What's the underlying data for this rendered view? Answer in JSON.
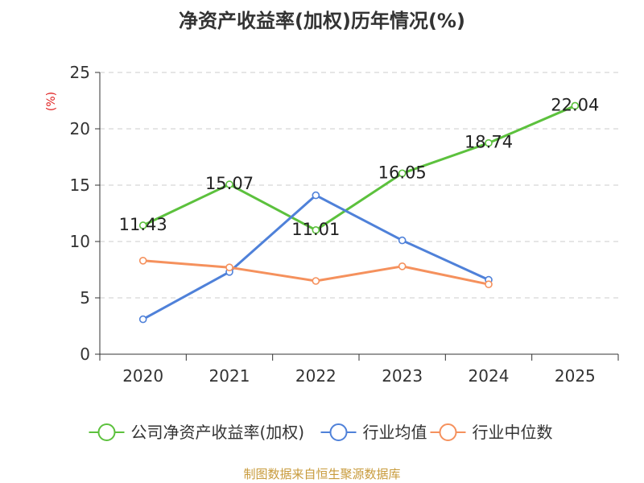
{
  "chart_data": {
    "type": "line",
    "title": "净资产收益率(加权)历年情况(%)",
    "ylabel": "(%)",
    "xlabel": "",
    "categories": [
      "2020",
      "2021",
      "2022",
      "2023",
      "2024",
      "2025"
    ],
    "ylim": [
      0,
      25
    ],
    "yticks": [
      0,
      5,
      10,
      15,
      20,
      25
    ],
    "grid": true,
    "legend_position": "bottom",
    "series": [
      {
        "name": "公司净资产收益率(加权)",
        "color": "#5cc13d",
        "values": [
          11.43,
          15.07,
          11.01,
          16.05,
          18.74,
          22.04
        ],
        "labels": [
          "11.43",
          "15.07",
          "11.01",
          "16.05",
          "18.74",
          "22.04"
        ]
      },
      {
        "name": "行业均值",
        "color": "#4f81d9",
        "values": [
          3.1,
          7.3,
          14.1,
          10.1,
          6.6,
          null
        ]
      },
      {
        "name": "行业中位数",
        "color": "#f5915d",
        "values": [
          8.3,
          7.7,
          6.5,
          7.8,
          6.2,
          null
        ]
      }
    ]
  },
  "source_text": "制图数据来自恒生聚源数据库"
}
